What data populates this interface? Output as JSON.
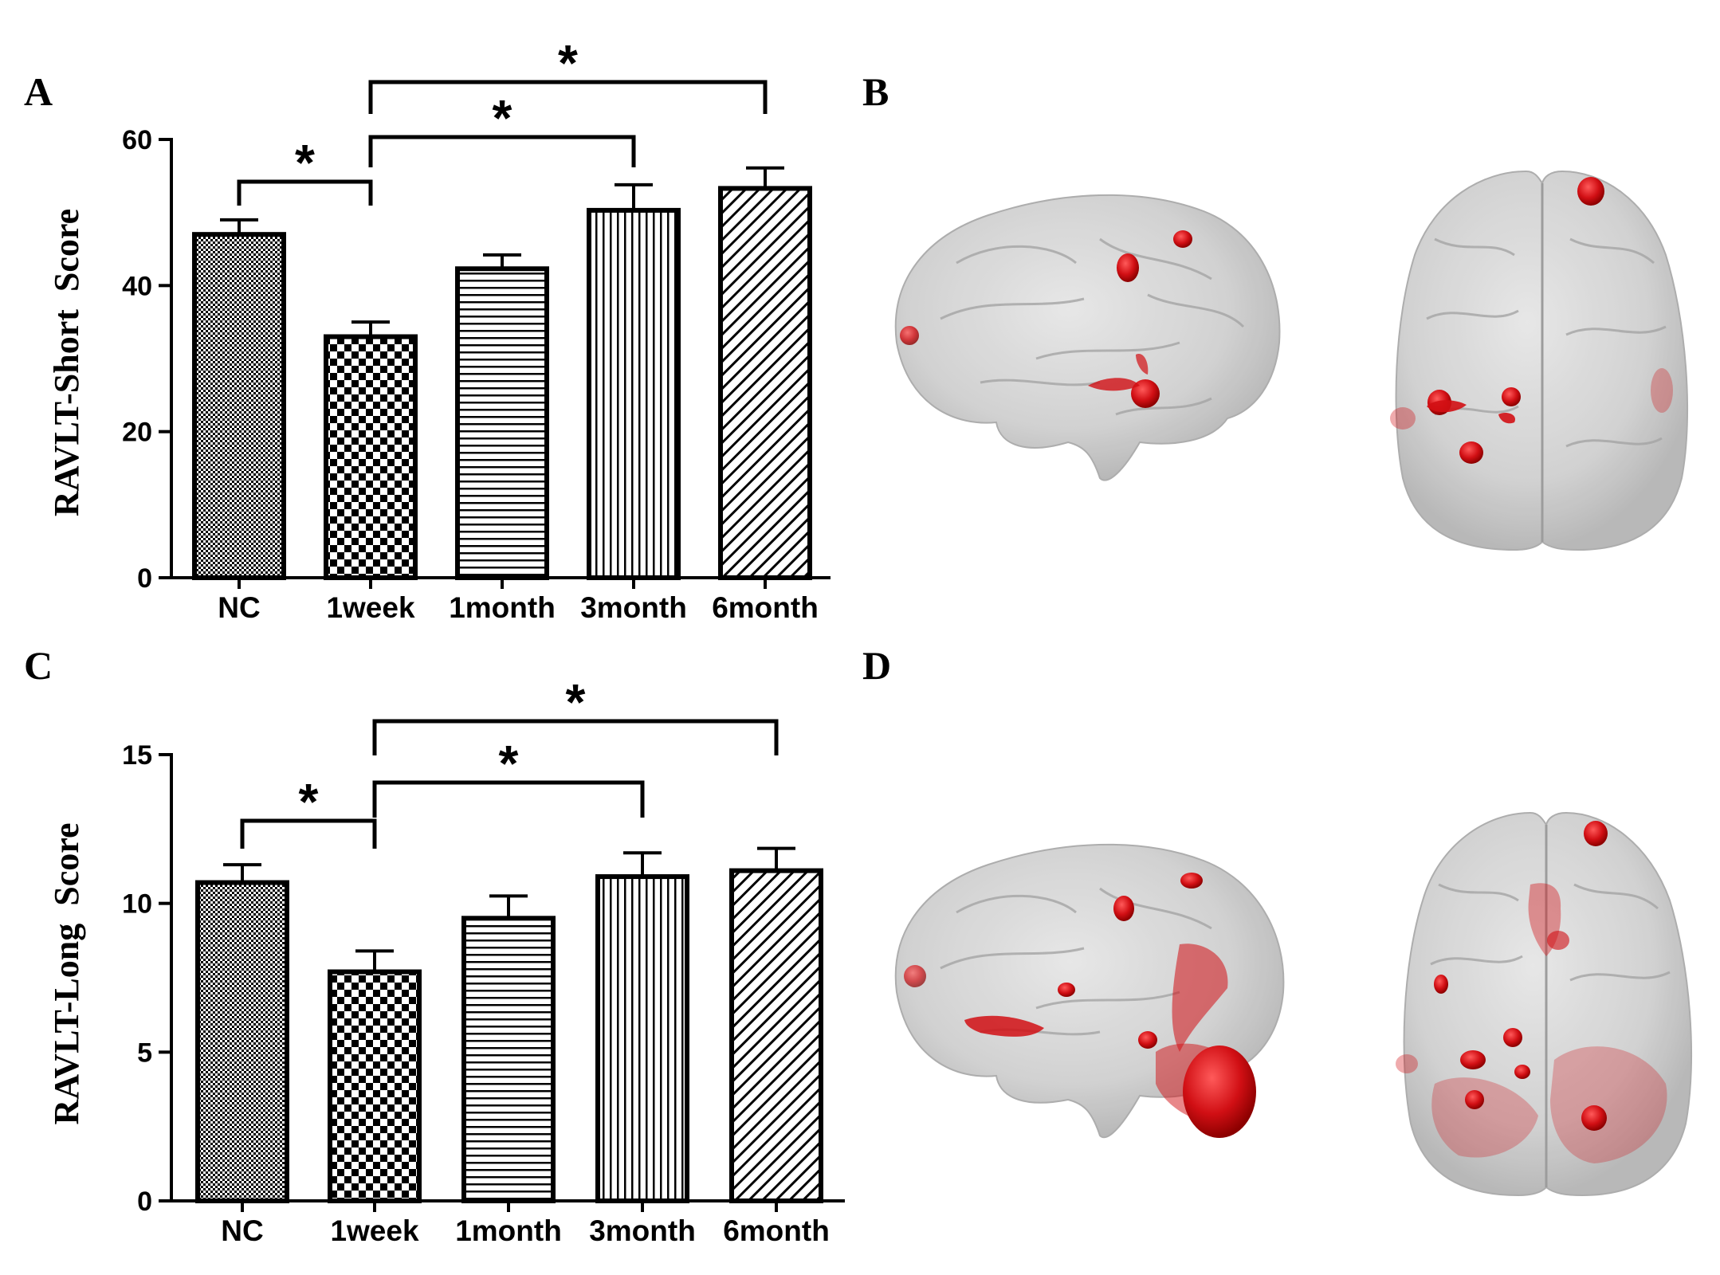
{
  "panels": {
    "a": "A",
    "b": "B",
    "c": "C",
    "d": "D"
  },
  "chart_data": [
    {
      "type": "bar",
      "panel": "A",
      "categories": [
        "NC",
        "1week",
        "1month",
        "3month",
        "6month"
      ],
      "values": [
        47,
        33,
        42.3,
        50.3,
        53.3
      ],
      "errors": [
        2.0,
        2.0,
        1.9,
        3.5,
        2.8
      ],
      "patterns": [
        "fine-check",
        "coarse-check",
        "horizontal",
        "vertical",
        "diagonal"
      ],
      "ylabel": "RAVLT-Short  Score",
      "ylim": [
        0,
        60
      ],
      "yticks": [
        0,
        20,
        40,
        60
      ],
      "significance": [
        {
          "from": 0,
          "to": 1,
          "label": "*"
        },
        {
          "from": 1,
          "to": 3,
          "label": "*"
        },
        {
          "from": 1,
          "to": 4,
          "label": "*"
        }
      ]
    },
    {
      "type": "bar",
      "panel": "C",
      "categories": [
        "NC",
        "1week",
        "1month",
        "3month",
        "6month"
      ],
      "values": [
        10.7,
        7.7,
        9.5,
        10.9,
        11.1
      ],
      "errors": [
        0.6,
        0.7,
        0.75,
        0.8,
        0.75
      ],
      "patterns": [
        "fine-check",
        "coarse-check",
        "horizontal",
        "vertical",
        "diagonal"
      ],
      "ylabel": "RAVLT-Long  Score",
      "ylim": [
        0,
        15
      ],
      "yticks": [
        0,
        5,
        10,
        15
      ],
      "significance": [
        {
          "from": 0,
          "to": 1,
          "label": "*"
        },
        {
          "from": 1,
          "to": 3,
          "label": "*"
        },
        {
          "from": 1,
          "to": 4,
          "label": "*"
        }
      ]
    }
  ],
  "brain_images": [
    {
      "panel": "B",
      "views": [
        "lateral",
        "axial"
      ],
      "highlight_color": "#d10f14",
      "brain_color": "#c9c9c9"
    },
    {
      "panel": "D",
      "views": [
        "lateral",
        "axial"
      ],
      "highlight_color": "#d10f14",
      "brain_color": "#c9c9c9"
    }
  ]
}
